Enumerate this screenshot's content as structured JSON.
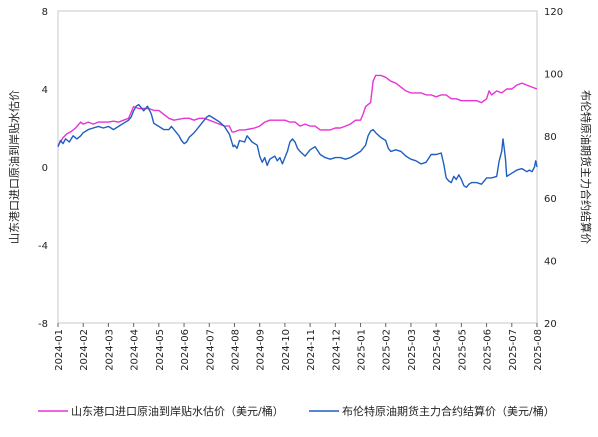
{
  "chart_data": {
    "type": "line",
    "title": "",
    "xlabel": "",
    "ylabel_left": "山东港口进口原油到岸贴水估价",
    "ylabel_right": "布伦特原油期货主力合约结算价",
    "left_axis": {
      "min": -8,
      "max": 8,
      "ticks": [
        "8",
        "4",
        "0",
        "-4",
        "-8"
      ]
    },
    "right_axis": {
      "min": 20,
      "max": 120,
      "ticks": [
        "120",
        "100",
        "80",
        "60",
        "40",
        "20"
      ]
    },
    "x_labels": [
      "2024-01",
      "2024-02",
      "2024-03",
      "2024-04",
      "2024-05",
      "2024-06",
      "2024-07",
      "2024-08",
      "2024-09",
      "2024-10",
      "2024-11",
      "2024-12",
      "2025-01",
      "2025-02",
      "2025-03",
      "2025-04",
      "2025-05",
      "2025-06",
      "2025-07",
      "2025-08"
    ],
    "x_range": [
      0,
      19
    ],
    "grid": false,
    "legend_position": "bottom",
    "series": [
      {
        "name": "山东港口进口原油到岸贴水估价（美元/桶）",
        "axis": "left",
        "color": "#e633d6",
        "points": [
          [
            0.0,
            1.1
          ],
          [
            0.2,
            1.5
          ],
          [
            0.35,
            1.7
          ],
          [
            0.5,
            1.8
          ],
          [
            0.7,
            2.0
          ],
          [
            0.9,
            2.3
          ],
          [
            1.0,
            2.2
          ],
          [
            1.2,
            2.3
          ],
          [
            1.4,
            2.2
          ],
          [
            1.6,
            2.3
          ],
          [
            1.8,
            2.3
          ],
          [
            2.0,
            2.3
          ],
          [
            2.2,
            2.35
          ],
          [
            2.4,
            2.3
          ],
          [
            2.6,
            2.4
          ],
          [
            2.8,
            2.5
          ],
          [
            2.9,
            2.8
          ],
          [
            3.0,
            3.1
          ],
          [
            3.2,
            3.0
          ],
          [
            3.4,
            3.0
          ],
          [
            3.6,
            3.0
          ],
          [
            3.8,
            2.9
          ],
          [
            4.0,
            2.9
          ],
          [
            4.2,
            2.7
          ],
          [
            4.4,
            2.5
          ],
          [
            4.6,
            2.4
          ],
          [
            4.8,
            2.45
          ],
          [
            5.0,
            2.5
          ],
          [
            5.2,
            2.5
          ],
          [
            5.4,
            2.4
          ],
          [
            5.6,
            2.5
          ],
          [
            5.8,
            2.5
          ],
          [
            6.0,
            2.4
          ],
          [
            6.2,
            2.3
          ],
          [
            6.4,
            2.2
          ],
          [
            6.6,
            2.1
          ],
          [
            6.8,
            2.1
          ],
          [
            6.9,
            1.8
          ],
          [
            7.0,
            1.8
          ],
          [
            7.2,
            1.9
          ],
          [
            7.4,
            1.9
          ],
          [
            7.6,
            1.95
          ],
          [
            7.8,
            2.0
          ],
          [
            8.0,
            2.1
          ],
          [
            8.2,
            2.3
          ],
          [
            8.4,
            2.4
          ],
          [
            8.6,
            2.4
          ],
          [
            8.8,
            2.4
          ],
          [
            9.0,
            2.4
          ],
          [
            9.2,
            2.3
          ],
          [
            9.4,
            2.3
          ],
          [
            9.6,
            2.1
          ],
          [
            9.8,
            2.2
          ],
          [
            10.0,
            2.1
          ],
          [
            10.2,
            2.1
          ],
          [
            10.4,
            1.9
          ],
          [
            10.6,
            1.9
          ],
          [
            10.8,
            1.9
          ],
          [
            11.0,
            2.0
          ],
          [
            11.2,
            2.0
          ],
          [
            11.4,
            2.1
          ],
          [
            11.6,
            2.2
          ],
          [
            11.8,
            2.4
          ],
          [
            12.0,
            2.4
          ],
          [
            12.1,
            2.7
          ],
          [
            12.2,
            3.1
          ],
          [
            12.3,
            3.2
          ],
          [
            12.4,
            3.3
          ],
          [
            12.5,
            4.4
          ],
          [
            12.6,
            4.7
          ],
          [
            12.8,
            4.7
          ],
          [
            13.0,
            4.6
          ],
          [
            13.2,
            4.4
          ],
          [
            13.4,
            4.3
          ],
          [
            13.6,
            4.1
          ],
          [
            13.8,
            3.9
          ],
          [
            14.0,
            3.8
          ],
          [
            14.2,
            3.8
          ],
          [
            14.4,
            3.8
          ],
          [
            14.6,
            3.7
          ],
          [
            14.8,
            3.7
          ],
          [
            15.0,
            3.6
          ],
          [
            15.2,
            3.7
          ],
          [
            15.4,
            3.7
          ],
          [
            15.6,
            3.5
          ],
          [
            15.8,
            3.5
          ],
          [
            16.0,
            3.4
          ],
          [
            16.2,
            3.4
          ],
          [
            16.4,
            3.4
          ],
          [
            16.6,
            3.4
          ],
          [
            16.8,
            3.3
          ],
          [
            17.0,
            3.5
          ],
          [
            17.1,
            3.9
          ],
          [
            17.2,
            3.7
          ],
          [
            17.4,
            3.9
          ],
          [
            17.6,
            3.8
          ],
          [
            17.8,
            4.0
          ],
          [
            18.0,
            4.0
          ],
          [
            18.2,
            4.2
          ],
          [
            18.4,
            4.3
          ],
          [
            18.6,
            4.2
          ],
          [
            18.8,
            4.1
          ],
          [
            19.0,
            4.0
          ]
        ]
      },
      {
        "name": "布伦特原油期货主力合约结算价（美元/桶）",
        "axis": "right",
        "color": "#1f5fbf",
        "points": [
          [
            0.0,
            76.5
          ],
          [
            0.1,
            78.5
          ],
          [
            0.2,
            77.5
          ],
          [
            0.3,
            79.0
          ],
          [
            0.45,
            78.0
          ],
          [
            0.6,
            80.0
          ],
          [
            0.75,
            79.0
          ],
          [
            0.9,
            80.0
          ],
          [
            1.0,
            81.0
          ],
          [
            1.2,
            82.0
          ],
          [
            1.4,
            82.5
          ],
          [
            1.6,
            83.0
          ],
          [
            1.8,
            82.5
          ],
          [
            2.0,
            83.0
          ],
          [
            2.2,
            82.0
          ],
          [
            2.4,
            83.0
          ],
          [
            2.6,
            84.0
          ],
          [
            2.8,
            85.0
          ],
          [
            2.9,
            86.0
          ],
          [
            3.0,
            88.0
          ],
          [
            3.1,
            89.5
          ],
          [
            3.2,
            90.0
          ],
          [
            3.3,
            89.0
          ],
          [
            3.4,
            88.0
          ],
          [
            3.55,
            89.5
          ],
          [
            3.7,
            87.0
          ],
          [
            3.8,
            84.0
          ],
          [
            3.9,
            83.5
          ],
          [
            4.0,
            83.0
          ],
          [
            4.2,
            82.0
          ],
          [
            4.4,
            82.0
          ],
          [
            4.5,
            83.0
          ],
          [
            4.6,
            82.0
          ],
          [
            4.8,
            80.0
          ],
          [
            4.9,
            78.5
          ],
          [
            5.0,
            77.5
          ],
          [
            5.1,
            78.0
          ],
          [
            5.2,
            79.5
          ],
          [
            5.4,
            81.0
          ],
          [
            5.5,
            82.0
          ],
          [
            5.6,
            83.0
          ],
          [
            5.7,
            84.0
          ],
          [
            5.8,
            85.0
          ],
          [
            5.9,
            86.0
          ],
          [
            6.0,
            86.5
          ],
          [
            6.2,
            85.5
          ],
          [
            6.4,
            84.5
          ],
          [
            6.6,
            83.0
          ],
          [
            6.8,
            80.5
          ],
          [
            6.95,
            76.5
          ],
          [
            7.0,
            77.0
          ],
          [
            7.1,
            76.0
          ],
          [
            7.2,
            78.5
          ],
          [
            7.4,
            78.0
          ],
          [
            7.5,
            80.0
          ],
          [
            7.7,
            78.0
          ],
          [
            7.9,
            77.0
          ],
          [
            8.0,
            73.5
          ],
          [
            8.1,
            71.5
          ],
          [
            8.2,
            73.0
          ],
          [
            8.3,
            70.5
          ],
          [
            8.4,
            72.5
          ],
          [
            8.5,
            73.0
          ],
          [
            8.6,
            73.5
          ],
          [
            8.7,
            72.0
          ],
          [
            8.8,
            73.0
          ],
          [
            8.9,
            71.0
          ],
          [
            9.0,
            73.0
          ],
          [
            9.1,
            75.0
          ],
          [
            9.2,
            78.0
          ],
          [
            9.3,
            79.0
          ],
          [
            9.4,
            78.0
          ],
          [
            9.5,
            76.0
          ],
          [
            9.6,
            75.0
          ],
          [
            9.8,
            73.5
          ],
          [
            10.0,
            75.5
          ],
          [
            10.2,
            76.5
          ],
          [
            10.4,
            74.0
          ],
          [
            10.6,
            73.0
          ],
          [
            10.8,
            72.5
          ],
          [
            11.0,
            73.0
          ],
          [
            11.2,
            73.0
          ],
          [
            11.4,
            72.5
          ],
          [
            11.6,
            73.0
          ],
          [
            11.8,
            74.0
          ],
          [
            12.0,
            75.0
          ],
          [
            12.2,
            77.0
          ],
          [
            12.3,
            80.0
          ],
          [
            12.4,
            81.5
          ],
          [
            12.5,
            82.0
          ],
          [
            12.6,
            81.0
          ],
          [
            12.8,
            79.5
          ],
          [
            13.0,
            78.5
          ],
          [
            13.1,
            76.0
          ],
          [
            13.2,
            75.0
          ],
          [
            13.4,
            75.5
          ],
          [
            13.6,
            75.0
          ],
          [
            13.8,
            73.5
          ],
          [
            14.0,
            72.5
          ],
          [
            14.2,
            72.0
          ],
          [
            14.4,
            71.0
          ],
          [
            14.6,
            71.5
          ],
          [
            14.8,
            74.0
          ],
          [
            15.0,
            74.0
          ],
          [
            15.2,
            74.5
          ],
          [
            15.3,
            71.0
          ],
          [
            15.4,
            66.5
          ],
          [
            15.5,
            65.5
          ],
          [
            15.6,
            65.0
          ],
          [
            15.7,
            67.0
          ],
          [
            15.8,
            66.0
          ],
          [
            15.9,
            67.5
          ],
          [
            16.0,
            66.0
          ],
          [
            16.1,
            64.0
          ],
          [
            16.2,
            63.5
          ],
          [
            16.3,
            64.5
          ],
          [
            16.4,
            65.0
          ],
          [
            16.6,
            65.0
          ],
          [
            16.8,
            64.5
          ],
          [
            17.0,
            66.5
          ],
          [
            17.2,
            66.5
          ],
          [
            17.4,
            67.0
          ],
          [
            17.5,
            72.0
          ],
          [
            17.6,
            75.0
          ],
          [
            17.65,
            79.0
          ],
          [
            17.7,
            76.0
          ],
          [
            17.75,
            72.5
          ],
          [
            17.8,
            67.0
          ],
          [
            17.9,
            67.5
          ],
          [
            18.0,
            68.0
          ],
          [
            18.2,
            69.0
          ],
          [
            18.4,
            69.5
          ],
          [
            18.6,
            68.5
          ],
          [
            18.7,
            69.0
          ],
          [
            18.8,
            68.5
          ],
          [
            18.9,
            70.0
          ],
          [
            18.95,
            72.0
          ],
          [
            19.0,
            70.0
          ]
        ]
      }
    ]
  }
}
